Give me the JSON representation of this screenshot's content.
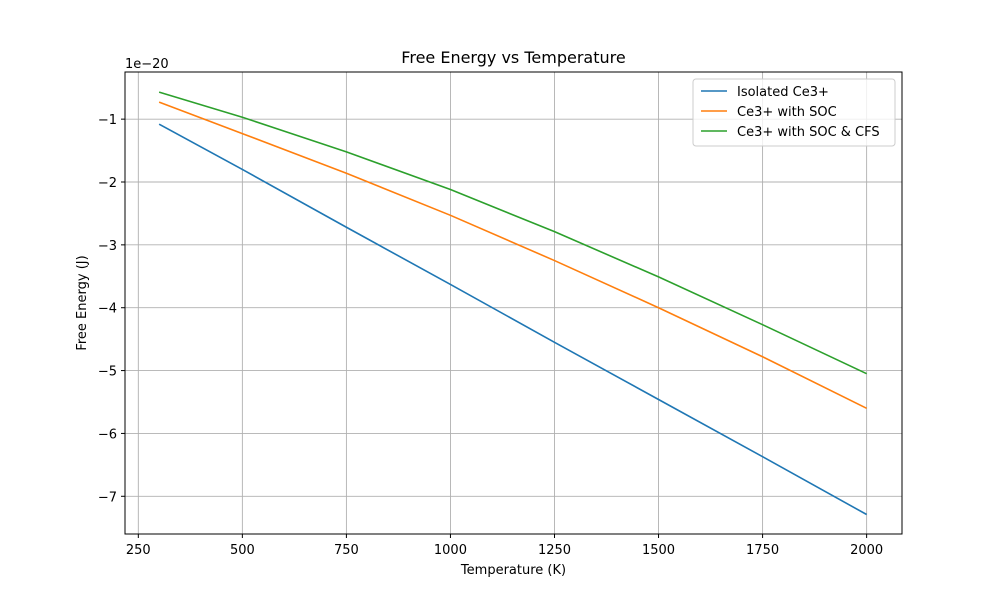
{
  "chart_data": {
    "type": "line",
    "title": "Free Energy vs Temperature",
    "xlabel": "Temperature (K)",
    "ylabel": "Free Energy (J)",
    "y_offset_label": "1e−20",
    "xlim": [
      218,
      2085
    ],
    "ylim": [
      -7.6,
      -0.25
    ],
    "xticks": [
      250,
      500,
      750,
      1000,
      1250,
      1500,
      1750,
      2000
    ],
    "xtick_labels": [
      "250",
      "500",
      "750",
      "1000",
      "1250",
      "1500",
      "1750",
      "2000"
    ],
    "yticks": [
      -1,
      -2,
      -3,
      -4,
      -5,
      -6,
      -7
    ],
    "ytick_labels": [
      "−1",
      "−2",
      "−3",
      "−4",
      "−5",
      "−6",
      "−7"
    ],
    "grid": true,
    "legend_position": "top-right",
    "series": [
      {
        "name": "Isolated Ce3+",
        "color": "#1f77b4",
        "x": [
          300,
          500,
          750,
          1000,
          1250,
          1500,
          1750,
          2000
        ],
        "y": [
          -1.08,
          -1.8,
          -2.72,
          -3.63,
          -4.55,
          -5.46,
          -6.37,
          -7.29
        ]
      },
      {
        "name": "Ce3+ with SOC",
        "color": "#ff7f0e",
        "x": [
          300,
          500,
          750,
          1000,
          1250,
          1500,
          1750,
          2000
        ],
        "y": [
          -0.73,
          -1.23,
          -1.86,
          -2.53,
          -3.25,
          -4.0,
          -4.78,
          -5.6
        ]
      },
      {
        "name": "Ce3+ with SOC & CFS",
        "color": "#2ca02c",
        "x": [
          300,
          500,
          750,
          1000,
          1250,
          1500,
          1750,
          2000
        ],
        "y": [
          -0.57,
          -0.97,
          -1.52,
          -2.12,
          -2.79,
          -3.51,
          -4.27,
          -5.05
        ]
      }
    ]
  }
}
